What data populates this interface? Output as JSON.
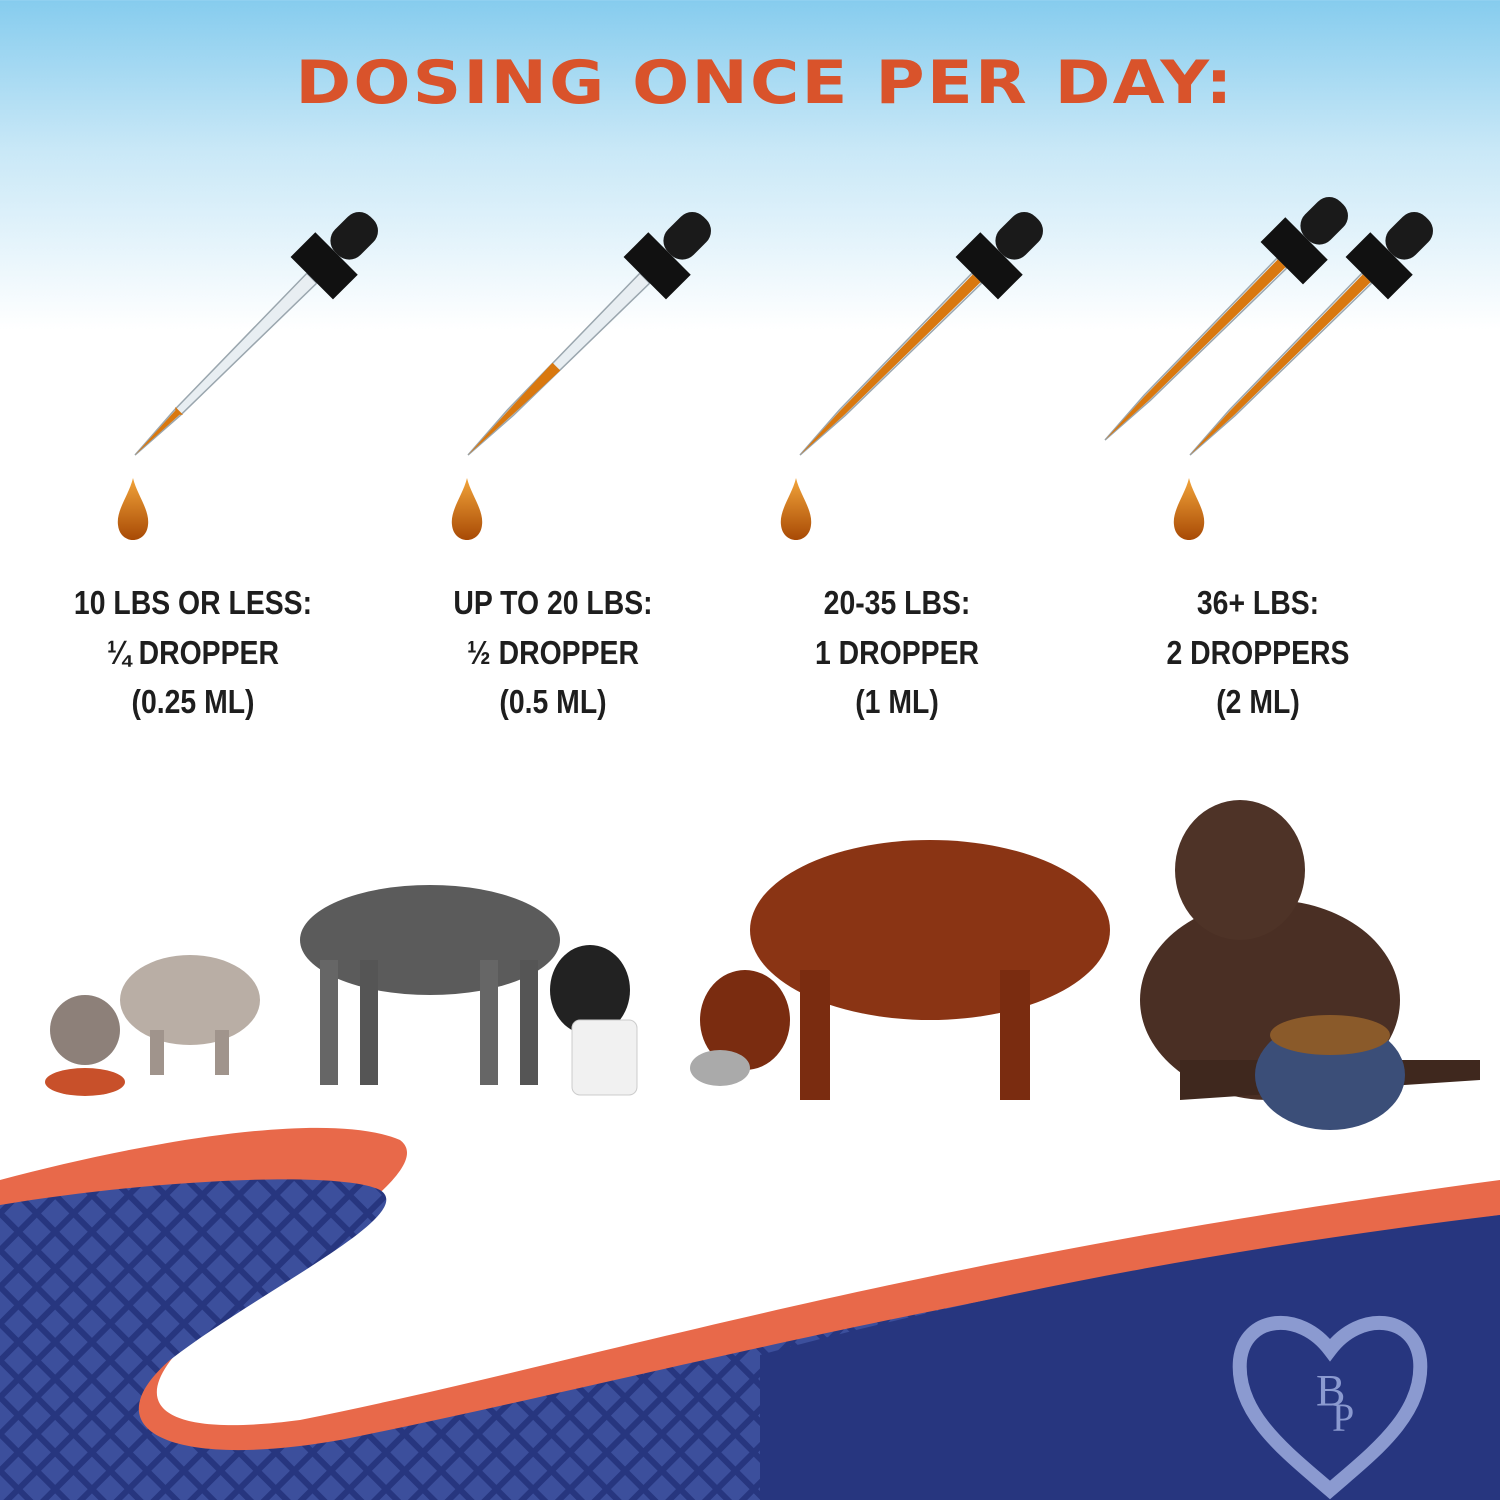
{
  "title": "DOSING ONCE PER DAY:",
  "doses": [
    {
      "weight": "10 LBS OR LESS:",
      "amount": "¼ DROPPER",
      "volume": "(0.25 ML)",
      "fill_fraction": 0.25,
      "droppers": 1
    },
    {
      "weight": "UP TO 20 LBS:",
      "amount": "½ DROPPER",
      "volume": "(0.5 ML)",
      "fill_fraction": 0.5,
      "droppers": 1
    },
    {
      "weight": "20-35 LBS:",
      "amount": "1 DROPPER",
      "volume": "(1 ML)",
      "fill_fraction": 1,
      "droppers": 1
    },
    {
      "weight": "36+ LBS:",
      "amount": "2 DROPPERS",
      "volume": "(2 ML)",
      "fill_fraction": 1,
      "droppers": 2
    }
  ],
  "logo": {
    "text": "BP",
    "icon": "heart-cat-dog-logo"
  },
  "colors": {
    "title": "#d9532b",
    "oil": "#d9780f",
    "navy": "#27367f",
    "orange": "#e8694a"
  }
}
